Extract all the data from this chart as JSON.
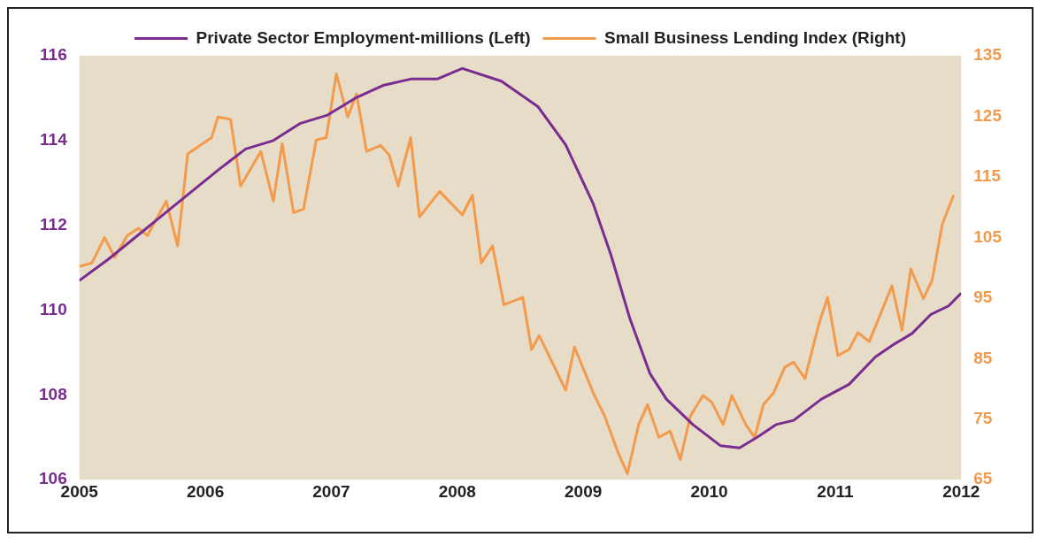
{
  "chart_data": {
    "type": "line",
    "xlim": [
      2005,
      2012
    ],
    "xticks": [
      2005,
      2006,
      2007,
      2008,
      2009,
      2010,
      2011,
      2012
    ],
    "ylim": [
      106,
      116
    ],
    "yticks": [
      106,
      108,
      110,
      112,
      114,
      116
    ],
    "y2lim": [
      65,
      135
    ],
    "y2ticks": [
      65,
      75,
      85,
      95,
      105,
      115,
      125,
      135
    ],
    "legend": "top",
    "grid": false,
    "marker": "none",
    "line_style": "solid",
    "series": [
      {
        "name": "Private Sector Employment-millions (Left)",
        "color": "#7b2c91",
        "x": [
          2005.0,
          2005.23,
          2005.52,
          2005.81,
          2006.1,
          2006.32,
          2006.54,
          2006.75,
          2006.97,
          2007.19,
          2007.41,
          2007.63,
          2007.84,
          2008.04,
          2008.35,
          2008.64,
          2008.86,
          2009.08,
          2009.22,
          2009.37,
          2009.53,
          2009.66,
          2009.87,
          2010.09,
          2010.24,
          2010.38,
          2010.53,
          2010.67,
          2010.89,
          2011.11,
          2011.32,
          2011.47,
          2011.61,
          2011.76,
          2011.9,
          2012.0
        ],
        "values": [
          110.7,
          111.2,
          111.9,
          112.6,
          113.3,
          113.8,
          114.0,
          114.4,
          114.6,
          115.0,
          115.3,
          115.45,
          115.45,
          115.7,
          115.4,
          114.8,
          113.9,
          112.5,
          111.3,
          109.8,
          108.5,
          107.9,
          107.3,
          106.8,
          106.75,
          107.0,
          107.3,
          107.4,
          107.9,
          108.25,
          108.9,
          109.2,
          109.45,
          109.9,
          110.1,
          110.4
        ]
      },
      {
        "name": "Small Business Lending Index (Right)",
        "color": "#f39a4c",
        "axis": "y2",
        "x": [
          2005.0,
          2005.1,
          2005.2,
          2005.28,
          2005.38,
          2005.47,
          2005.54,
          2005.69,
          2005.78,
          2005.86,
          2005.96,
          2006.05,
          2006.1,
          2006.2,
          2006.28,
          2006.44,
          2006.54,
          2006.61,
          2006.7,
          2006.78,
          2006.88,
          2006.96,
          2007.04,
          2007.13,
          2007.2,
          2007.28,
          2007.39,
          2007.46,
          2007.53,
          2007.63,
          2007.7,
          2007.86,
          2008.04,
          2008.12,
          2008.19,
          2008.28,
          2008.37,
          2008.52,
          2008.59,
          2008.65,
          2008.86,
          2008.93,
          2009.08,
          2009.17,
          2009.27,
          2009.35,
          2009.44,
          2009.51,
          2009.6,
          2009.69,
          2009.77,
          2009.85,
          2009.95,
          2010.02,
          2010.11,
          2010.18,
          2010.29,
          2010.36,
          2010.43,
          2010.51,
          2010.6,
          2010.67,
          2010.76,
          2010.87,
          2010.94,
          2011.02,
          2011.11,
          2011.18,
          2011.27,
          2011.45,
          2011.53,
          2011.6,
          2011.7,
          2011.77,
          2011.85,
          2011.94
        ],
        "values": [
          100.2,
          100.8,
          105,
          101.7,
          105.3,
          106.5,
          105.3,
          111,
          103.6,
          118.8,
          120.2,
          121.5,
          124.9,
          124.5,
          113.5,
          119.2,
          111,
          120.5,
          109.1,
          109.7,
          121.1,
          121.5,
          132,
          124.9,
          128.7,
          119.2,
          120.2,
          118.6,
          113.5,
          121.5,
          108.4,
          112.6,
          108.7,
          112,
          100.8,
          103.6,
          93.9,
          95.1,
          86.5,
          88.8,
          79.8,
          86.9,
          79.3,
          75.5,
          69.8,
          66,
          74.1,
          77.4,
          72,
          73,
          68.3,
          75.5,
          78.9,
          77.8,
          74.1,
          78.9,
          74.1,
          72,
          77.4,
          79.3,
          83.6,
          84.4,
          81.7,
          90.7,
          95.1,
          85.5,
          86.5,
          89.3,
          87.8,
          97,
          89.7,
          99.8,
          94.9,
          98,
          107.2,
          112
        ]
      }
    ]
  }
}
